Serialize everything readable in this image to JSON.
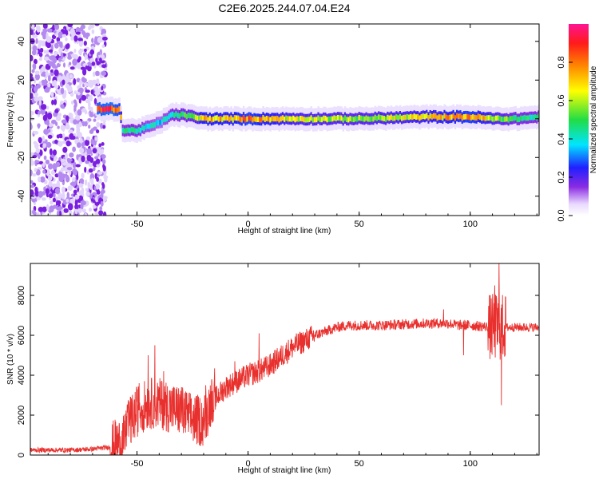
{
  "title": "C2E6.2025.244.07.04.E24",
  "chart_data": [
    {
      "type": "heatmap",
      "xlabel": "Height of straight line (km)",
      "ylabel": "Frequency (Hz)",
      "xlim": [
        -98,
        131
      ],
      "ylim": [
        -50,
        49
      ],
      "xticks": [
        -50,
        0,
        50,
        100
      ],
      "yticks": [
        -40,
        -20,
        0,
        20,
        40
      ],
      "colorbar": {
        "label": "Normalized spectral amplitude",
        "range": [
          0.0,
          1.0
        ],
        "ticks": [
          0.0,
          0.2,
          0.4,
          0.6,
          0.8
        ]
      },
      "ridge": {
        "x": [
          -68,
          -63,
          -58,
          -57,
          -50,
          -45,
          -40,
          -35,
          -30,
          -25,
          -20,
          -10,
          0,
          20,
          50,
          80,
          100,
          110,
          120,
          131
        ],
        "frequency": [
          5,
          5,
          5,
          -6,
          -6,
          -4,
          -2,
          2,
          2,
          1,
          0,
          0,
          0,
          0,
          0,
          1,
          1,
          0,
          0,
          1
        ],
        "amplitude": [
          0.95,
          1.0,
          0.9,
          0.5,
          0.5,
          0.45,
          0.4,
          0.5,
          0.55,
          0.6,
          0.85,
          0.8,
          0.9,
          0.7,
          0.65,
          0.75,
          0.9,
          0.7,
          0.55,
          0.5
        ]
      },
      "noise_region": [
        -98,
        -68
      ]
    },
    {
      "type": "line",
      "xlabel": "Height of straight line (km)",
      "ylabel": "SNR (10 * v/v)",
      "xlim": [
        -98,
        131
      ],
      "ylim": [
        0,
        9600
      ],
      "xticks": [
        -50,
        0,
        50,
        100
      ],
      "yticks": [
        0,
        2000,
        4000,
        6000,
        8000
      ],
      "color": "#e8312e",
      "grid": false,
      "envelope": {
        "x": [
          -98,
          -80,
          -70,
          -62,
          -56,
          -50,
          -45,
          -40,
          -35,
          -30,
          -25,
          -20,
          -15,
          -10,
          -5,
          0,
          5,
          10,
          20,
          30,
          40,
          45,
          50,
          60,
          70,
          80,
          90,
          95,
          100,
          105,
          110,
          113,
          116,
          120,
          131
        ],
        "y": [
          250,
          250,
          300,
          400,
          700,
          1800,
          2200,
          2200,
          2000,
          1800,
          1400,
          1300,
          2800,
          3400,
          3700,
          4000,
          4200,
          4500,
          5400,
          6000,
          6400,
          6500,
          6500,
          6500,
          6550,
          6600,
          6600,
          6500,
          6500,
          6450,
          6400,
          6400,
          6400,
          6400,
          6400
        ]
      },
      "spikes": [
        {
          "x": -53,
          "y": 2900
        },
        {
          "x": -49,
          "y": 3600
        },
        {
          "x": -45,
          "y": 5000
        },
        {
          "x": -42,
          "y": 5500
        },
        {
          "x": -38,
          "y": 4200
        },
        {
          "x": -30,
          "y": 3400
        },
        {
          "x": -19,
          "y": 3500
        },
        {
          "x": -6,
          "y": 4700
        },
        {
          "x": 5,
          "y": 6100
        },
        {
          "x": 88,
          "y": 7300
        },
        {
          "x": 97,
          "y": 5000
        },
        {
          "x": 111,
          "y": 8500
        },
        {
          "x": 113,
          "y": 9600
        },
        {
          "x": 114,
          "y": 2500
        }
      ]
    }
  ]
}
